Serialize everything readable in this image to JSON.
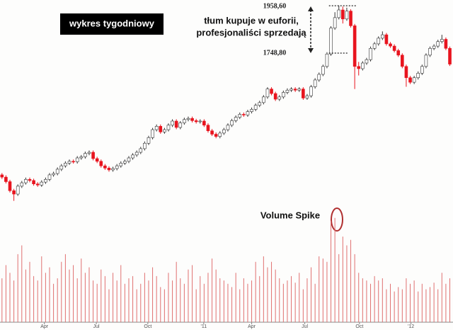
{
  "chart_data": {
    "type": "candlestick",
    "title": "wykres tygodniowy",
    "annotation": [
      "tłum kupuje w euforii,",
      "profesjonaliści sprzedają"
    ],
    "spike_label": "Volume Spike",
    "price_levels": [
      {
        "value": 1958.6,
        "label": "1958,60"
      },
      {
        "value": 1748.8,
        "label": "1748,80"
      }
    ],
    "up_color": "#ffffff",
    "down_color": "#e8141e",
    "volume_color": "#e07070",
    "xlim": [
      -0.5,
      113.8
    ],
    "ylim": [
      1075,
      1984
    ],
    "vlim": [
      0,
      100
    ],
    "xticks": [
      {
        "value": 10.7,
        "label": "Apr"
      },
      {
        "value": 23.8,
        "label": "Jul"
      },
      {
        "value": 36.8,
        "label": "Oct"
      },
      {
        "value": 50.9,
        "label": "'11"
      },
      {
        "value": 63,
        "label": "Apr"
      },
      {
        "value": 76.4,
        "label": "Jul"
      },
      {
        "value": 90.2,
        "label": "Oct"
      },
      {
        "value": 103.2,
        "label": "'12"
      }
    ],
    "open": [
      1210,
      1200,
      1180,
      1140,
      1125,
      1160,
      1175,
      1190,
      1185,
      1170,
      1165,
      1178,
      1190,
      1210,
      1216,
      1235,
      1250,
      1262,
      1270,
      1268,
      1285,
      1290,
      1305,
      1310,
      1282,
      1270,
      1250,
      1240,
      1232,
      1238,
      1250,
      1262,
      1270,
      1285,
      1298,
      1310,
      1326,
      1350,
      1375,
      1410,
      1425,
      1400,
      1410,
      1430,
      1448,
      1420,
      1440,
      1455,
      1460,
      1450,
      1445,
      1448,
      1430,
      1405,
      1390,
      1380,
      1395,
      1410,
      1430,
      1450,
      1465,
      1478,
      1475,
      1490,
      1500,
      1518,
      1530,
      1555,
      1590,
      1570,
      1545,
      1555,
      1575,
      1585,
      1590,
      1585,
      1590,
      1550,
      1560,
      1600,
      1630,
      1655,
      1690,
      1745,
      1860,
      1906,
      1940,
      1900,
      1935,
      1870,
      1690,
      1680,
      1705,
      1720,
      1770,
      1790,
      1815,
      1830,
      1790,
      1780,
      1760,
      1740,
      1690,
      1640,
      1620,
      1640,
      1660,
      1690,
      1740,
      1770,
      1780,
      1800,
      1810,
      1770
    ],
    "high": [
      1218,
      1208,
      1188,
      1148,
      1168,
      1183,
      1198,
      1198,
      1193,
      1178,
      1186,
      1198,
      1218,
      1224,
      1243,
      1258,
      1270,
      1278,
      1278,
      1293,
      1298,
      1313,
      1318,
      1318,
      1290,
      1278,
      1258,
      1248,
      1246,
      1258,
      1270,
      1278,
      1293,
      1306,
      1318,
      1334,
      1358,
      1383,
      1418,
      1433,
      1433,
      1418,
      1438,
      1456,
      1456,
      1448,
      1463,
      1468,
      1468,
      1458,
      1456,
      1456,
      1438,
      1413,
      1398,
      1403,
      1418,
      1438,
      1458,
      1473,
      1486,
      1486,
      1498,
      1508,
      1526,
      1538,
      1563,
      1598,
      1598,
      1578,
      1563,
      1583,
      1593,
      1598,
      1598,
      1598,
      1598,
      1568,
      1608,
      1638,
      1663,
      1698,
      1753,
      1868,
      1930,
      1958.6,
      1955,
      1950,
      1943,
      1878,
      1710,
      1713,
      1728,
      1778,
      1798,
      1823,
      1845,
      1838,
      1798,
      1788,
      1768,
      1748,
      1698,
      1648,
      1648,
      1668,
      1698,
      1748,
      1778,
      1788,
      1808,
      1830,
      1818,
      1778
    ],
    "low": [
      1192,
      1172,
      1132,
      1095,
      1117,
      1152,
      1167,
      1177,
      1162,
      1157,
      1157,
      1170,
      1182,
      1202,
      1208,
      1227,
      1242,
      1254,
      1260,
      1260,
      1277,
      1282,
      1297,
      1274,
      1262,
      1242,
      1232,
      1224,
      1224,
      1230,
      1242,
      1254,
      1262,
      1277,
      1290,
      1302,
      1318,
      1342,
      1367,
      1402,
      1392,
      1392,
      1402,
      1422,
      1412,
      1412,
      1432,
      1447,
      1442,
      1437,
      1437,
      1422,
      1397,
      1382,
      1372,
      1372,
      1387,
      1402,
      1422,
      1442,
      1457,
      1467,
      1467,
      1482,
      1492,
      1510,
      1522,
      1547,
      1562,
      1537,
      1537,
      1547,
      1567,
      1577,
      1577,
      1577,
      1542,
      1542,
      1552,
      1592,
      1622,
      1647,
      1682,
      1737,
      1852,
      1898,
      1880,
      1892,
      1862,
      1590,
      1650,
      1672,
      1697,
      1712,
      1762,
      1782,
      1807,
      1782,
      1772,
      1752,
      1732,
      1682,
      1600,
      1612,
      1612,
      1632,
      1652,
      1682,
      1732,
      1762,
      1772,
      1792,
      1762,
      1692
    ],
    "close": [
      1200,
      1180,
      1140,
      1125,
      1160,
      1175,
      1190,
      1185,
      1170,
      1165,
      1178,
      1190,
      1210,
      1216,
      1235,
      1250,
      1262,
      1270,
      1268,
      1285,
      1290,
      1305,
      1310,
      1282,
      1270,
      1250,
      1240,
      1232,
      1238,
      1250,
      1262,
      1270,
      1285,
      1298,
      1310,
      1326,
      1350,
      1375,
      1410,
      1425,
      1400,
      1410,
      1430,
      1448,
      1420,
      1440,
      1455,
      1460,
      1450,
      1445,
      1448,
      1430,
      1405,
      1390,
      1380,
      1395,
      1410,
      1430,
      1450,
      1465,
      1478,
      1475,
      1490,
      1500,
      1518,
      1530,
      1555,
      1590,
      1570,
      1545,
      1555,
      1575,
      1585,
      1590,
      1585,
      1590,
      1550,
      1560,
      1600,
      1630,
      1655,
      1690,
      1745,
      1860,
      1906,
      1940,
      1900,
      1935,
      1870,
      1690,
      1680,
      1705,
      1720,
      1770,
      1790,
      1815,
      1830,
      1790,
      1780,
      1760,
      1740,
      1690,
      1640,
      1620,
      1640,
      1660,
      1690,
      1740,
      1770,
      1780,
      1800,
      1810,
      1770,
      1700
    ],
    "volume": [
      40,
      52,
      45,
      38,
      62,
      70,
      48,
      55,
      42,
      38,
      60,
      45,
      50,
      35,
      40,
      55,
      62,
      48,
      52,
      40,
      58,
      45,
      50,
      38,
      35,
      48,
      42,
      30,
      45,
      38,
      52,
      35,
      40,
      42,
      30,
      35,
      45,
      38,
      50,
      42,
      32,
      30,
      45,
      38,
      55,
      40,
      35,
      48,
      52,
      30,
      42,
      35,
      45,
      58,
      48,
      40,
      38,
      35,
      32,
      45,
      30,
      40,
      35,
      38,
      55,
      42,
      60,
      50,
      55,
      48,
      40,
      35,
      38,
      42,
      36,
      45,
      30,
      40,
      50,
      35,
      60,
      58,
      55,
      92,
      95,
      62,
      78,
      70,
      75,
      62,
      45,
      40,
      38,
      35,
      42,
      38,
      40,
      30,
      35,
      28,
      32,
      30,
      40,
      35,
      38,
      28,
      35,
      30,
      32,
      36,
      30,
      45,
      35,
      40
    ]
  }
}
